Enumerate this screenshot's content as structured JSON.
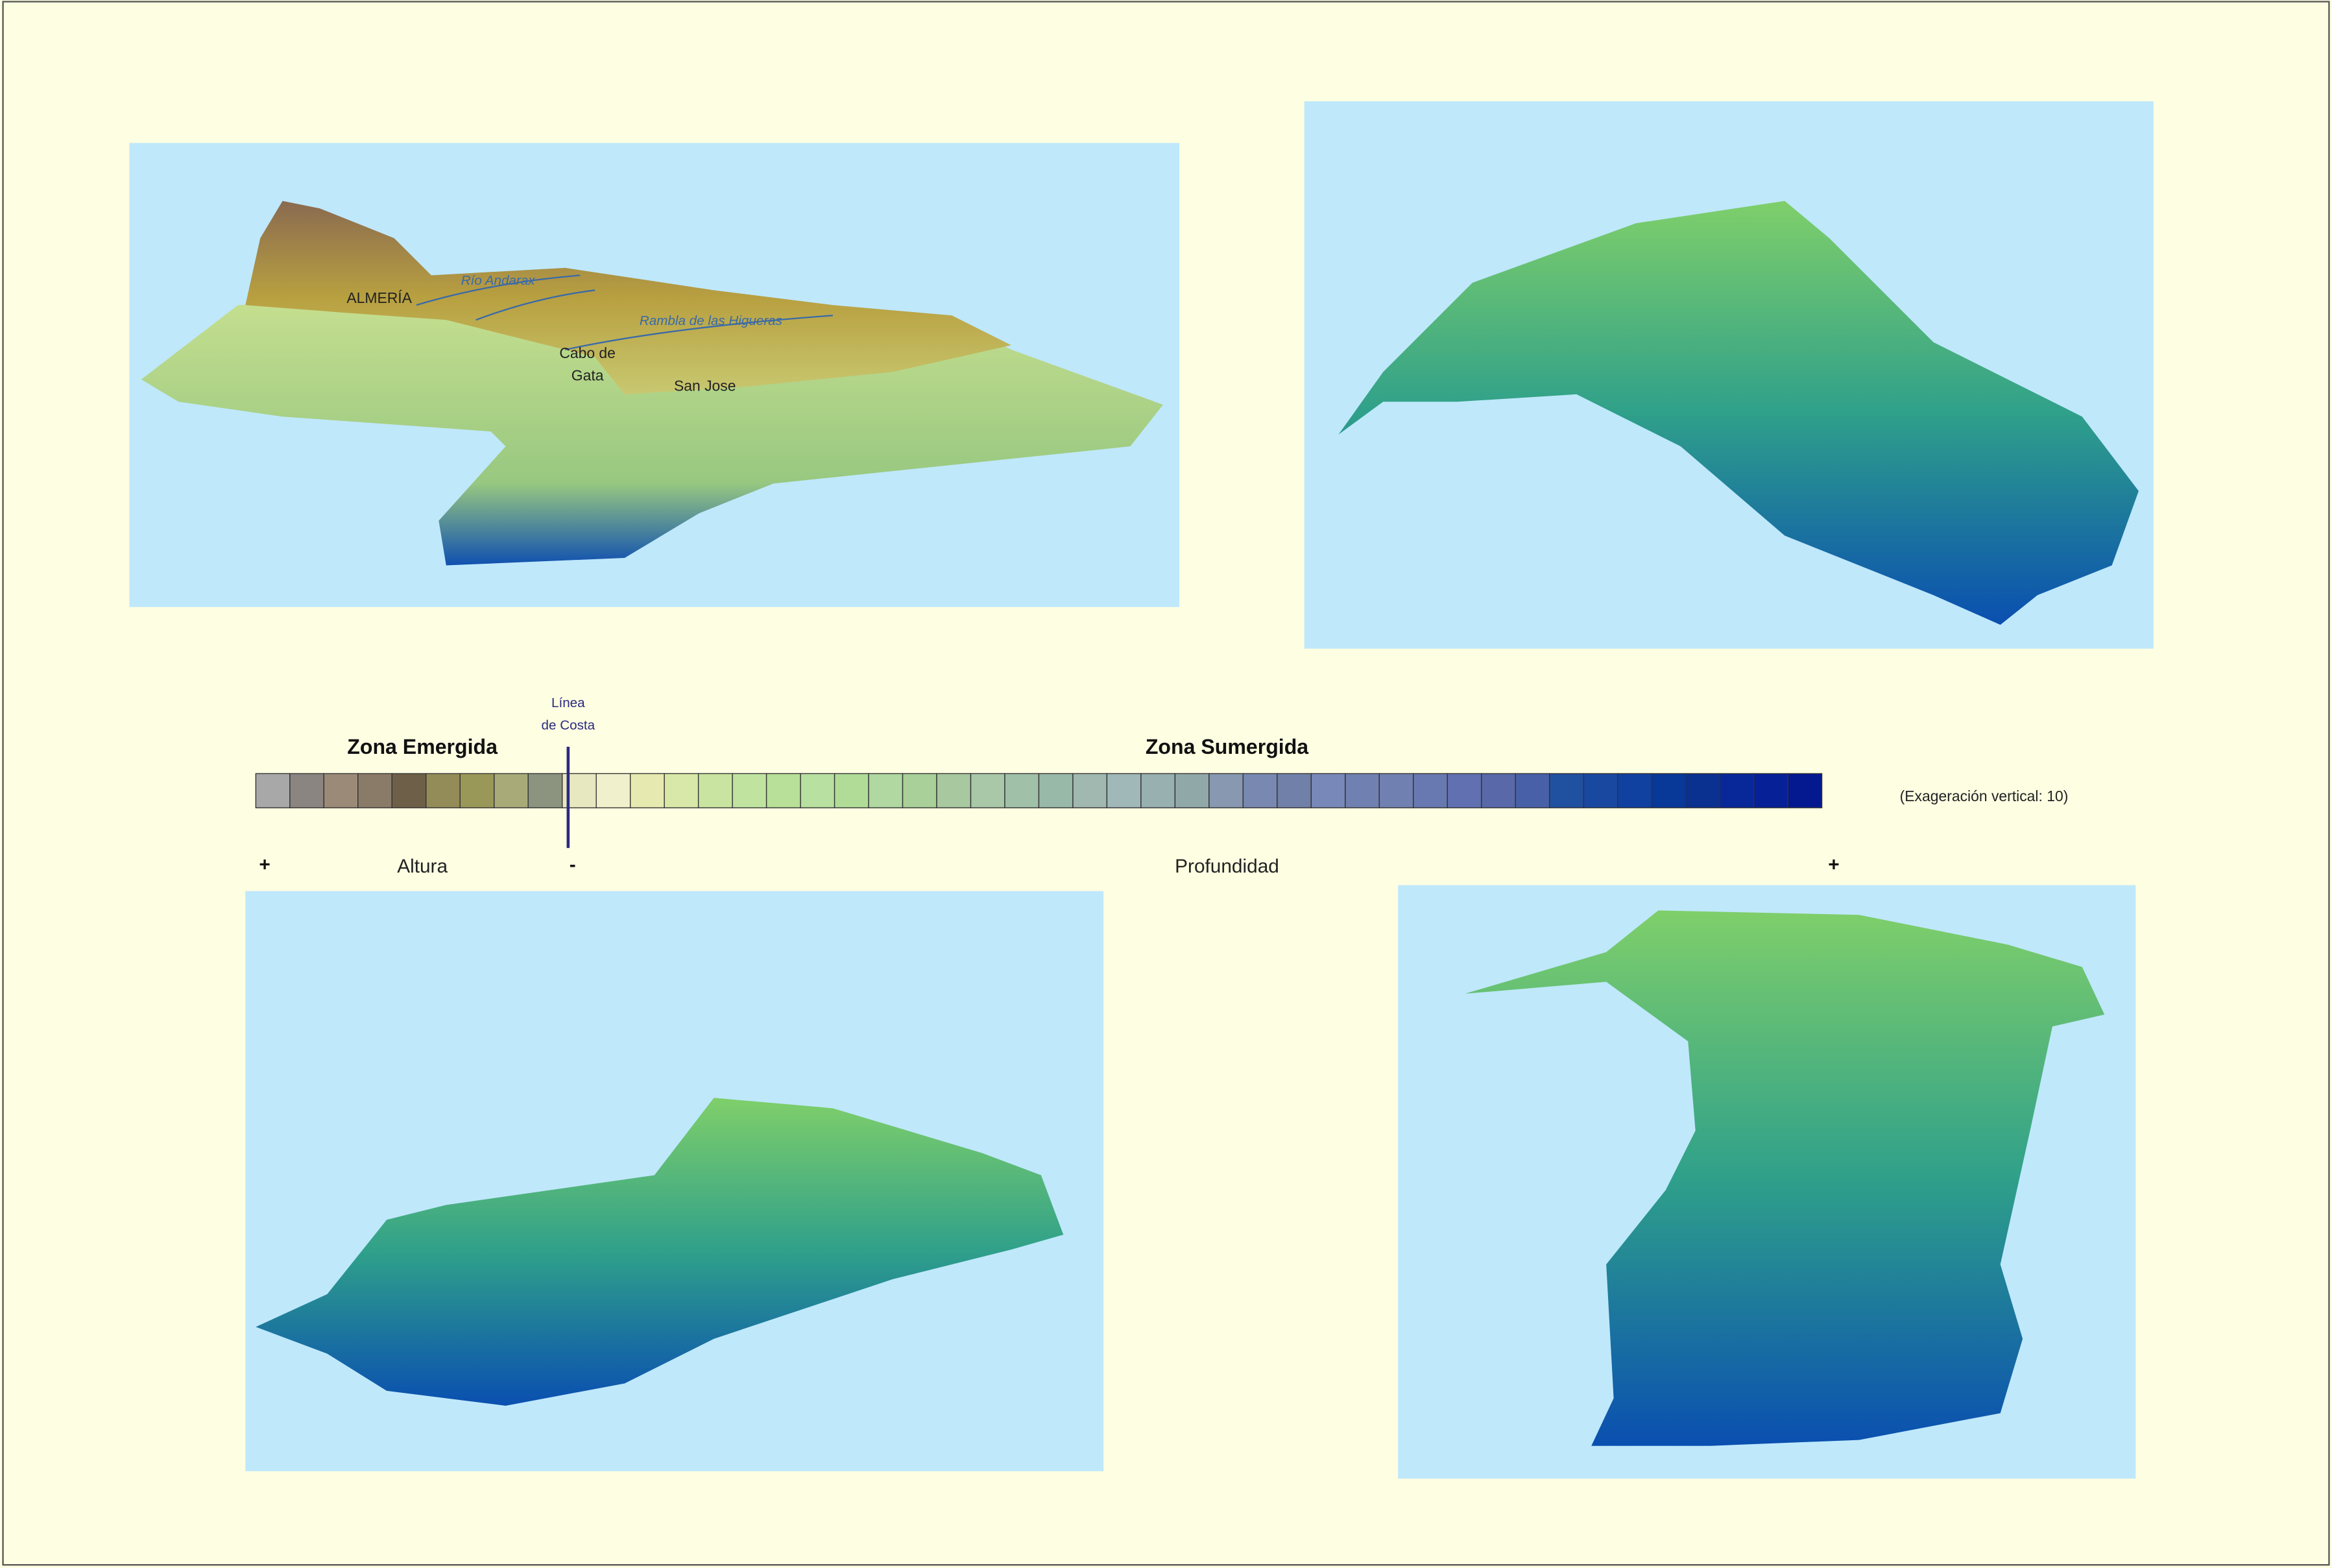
{
  "map_labels": {
    "city": "ALMERÍA",
    "river": "Río Andarax",
    "rambla": "Rambla de las Higueras",
    "cape": "Cabo de Gata",
    "cape_line1": "Cabo de",
    "cape_line2": "Gata",
    "town": "San Jose"
  },
  "legend": {
    "coast_line1": "Línea",
    "coast_line2": "de Costa",
    "emerged": "Zona Emergida",
    "submerged": "Zona Sumergida",
    "exaggeration": "(Exageración vertical: 10)",
    "plus_left": "+",
    "height": "Altura",
    "minus": "-",
    "depth": "Profundidad",
    "plus_right": "+",
    "colors": [
      "#a8a8a8",
      "#8a8580",
      "#9c8a78",
      "#8a7a68",
      "#6e6048",
      "#948c58",
      "#9a9858",
      "#a8aa78",
      "#8c9480",
      "#e8e8c0",
      "#f0f0cc",
      "#e6eab0",
      "#d8e8a8",
      "#c8e4a0",
      "#c0e4a0",
      "#b8e098",
      "#b8e0a0",
      "#b0dc98",
      "#b0d8a0",
      "#a8d098",
      "#a8c8a0",
      "#a8c8a8",
      "#a0c0a8",
      "#98b8a8",
      "#a0b8b0",
      "#a0b8b8",
      "#98b0b0",
      "#90a8a8",
      "#8898b0",
      "#7888b0",
      "#7080a8",
      "#7888b8",
      "#7080b0",
      "#7080b0",
      "#6878b0",
      "#6070b0",
      "#5868a8",
      "#4860a8",
      "#2050a0",
      "#1848a0",
      "#1040a0",
      "#083898",
      "#0a3090",
      "#08289a",
      "#062098",
      "#041890"
    ]
  }
}
